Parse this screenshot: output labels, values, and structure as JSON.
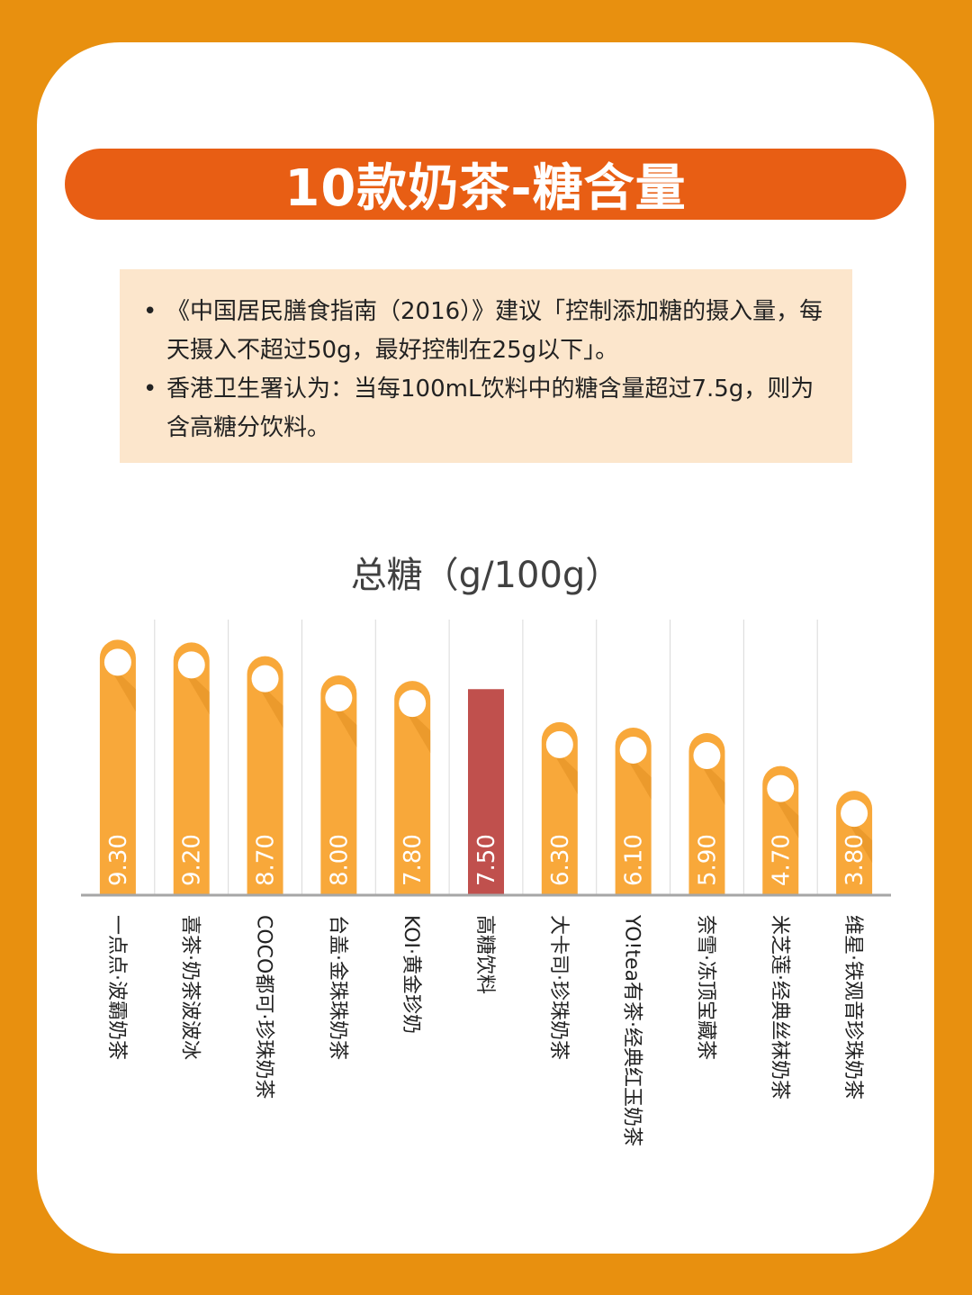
{
  "header": {
    "title": "10款奶茶-糖含量"
  },
  "notes": [
    {
      "bullet": "•",
      "text": "《中国居民膳食指南（2016）》建议「控制添加糖的摄入量，每天摄入不超过50g，最好控制在25g以下」。"
    },
    {
      "bullet": "•",
      "text": "香港卫生署认为：当每100mL饮料中的糖含量超过7.5g，则为含高糖分饮料。"
    }
  ],
  "colors": {
    "background": "#E8900F",
    "title_bg": "#E85E14",
    "note_bg": "#FCE6CC",
    "bar": "#F8A83A",
    "bar_shadow": "#E08E20",
    "highlight_bar": "#C0504D",
    "axis": "#A6A6A6",
    "grid": "#D9D9D9"
  },
  "chart_data": {
    "type": "bar",
    "title": "总糖（g/100g）",
    "categories": [
      "一点点·波霸奶茶",
      "喜茶·奶茶波波冰",
      "COCO都可·珍珠奶茶",
      "台盖·金珠珠奶茶",
      "KOI·黄金珍奶",
      "高糖饮料",
      "大卡司·珍珠奶茶",
      "YO!tea有茶·经典红玉奶茶",
      "奈雪·冻顶宝藏茶",
      "米芝莲·经典丝袜奶茶",
      "维星·铁观音珍珠奶茶"
    ],
    "values": [
      9.3,
      9.2,
      8.7,
      8.0,
      7.8,
      7.5,
      6.3,
      6.1,
      5.9,
      4.7,
      3.8
    ],
    "value_labels": [
      "9.30",
      "9.20",
      "8.70",
      "8.00",
      "7.80",
      "7.50",
      "6.30",
      "6.10",
      "5.90",
      "4.70",
      "3.80"
    ],
    "highlight_index": 5,
    "grid": true,
    "legend": "none"
  }
}
